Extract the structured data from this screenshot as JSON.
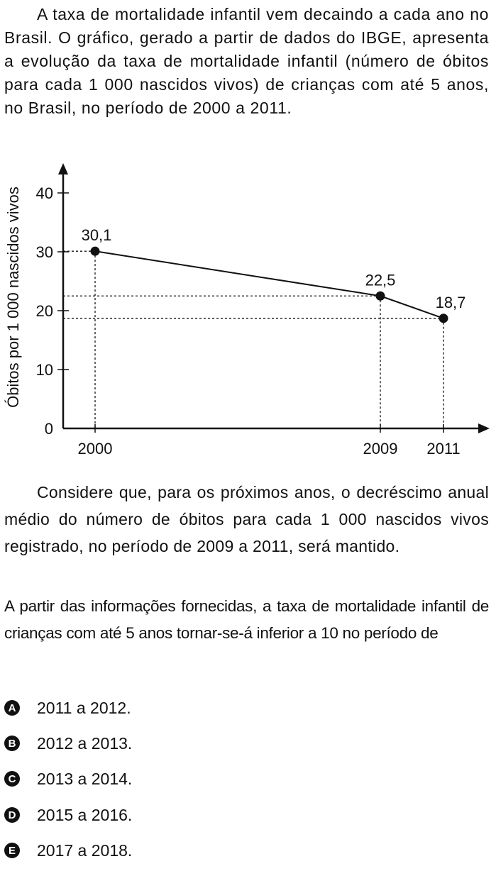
{
  "intro": "A taxa de mortalidade infantil vem decaindo a cada ano no Brasil. O gráfico, gerado a partir de dados do IBGE, apresenta a evolução da taxa de mortalidade infantil (número de óbitos para cada 1 000 nascidos vivos) de crianças com até 5 anos, no Brasil, no período de 2000 a 2011.",
  "chart_data": {
    "type": "line",
    "title": "",
    "xlabel": "",
    "ylabel": "Óbitos por 1 000 nascidos vivos",
    "ylim": [
      0,
      40
    ],
    "y_ticks": [
      "0",
      "10",
      "20",
      "30",
      "40"
    ],
    "x_ticks": [
      "2000",
      "2009",
      "2011"
    ],
    "x": [
      2000,
      2009,
      2011
    ],
    "y": [
      30.1,
      22.5,
      18.7
    ],
    "labels": [
      "30,1",
      "22,5",
      "18,7"
    ],
    "grid": false,
    "dashed_guides": true
  },
  "consider": "Considere que, para os próximos anos, o decréscimo anual médio do número de óbitos para cada 1 000 nascidos vivos registrado, no período de 2009 a 2011, será mantido.",
  "question": "A partir das informações fornecidas, a taxa de mortalidade infantil de crianças com até 5 anos tornar-se-á inferior a 10 no período de",
  "options": [
    {
      "letter": "A",
      "text": "2011 a 2012."
    },
    {
      "letter": "B",
      "text": "2012 a 2013."
    },
    {
      "letter": "C",
      "text": "2013 a 2014."
    },
    {
      "letter": "D",
      "text": "2015 a 2016."
    },
    {
      "letter": "E",
      "text": "2017 a 2018."
    }
  ]
}
